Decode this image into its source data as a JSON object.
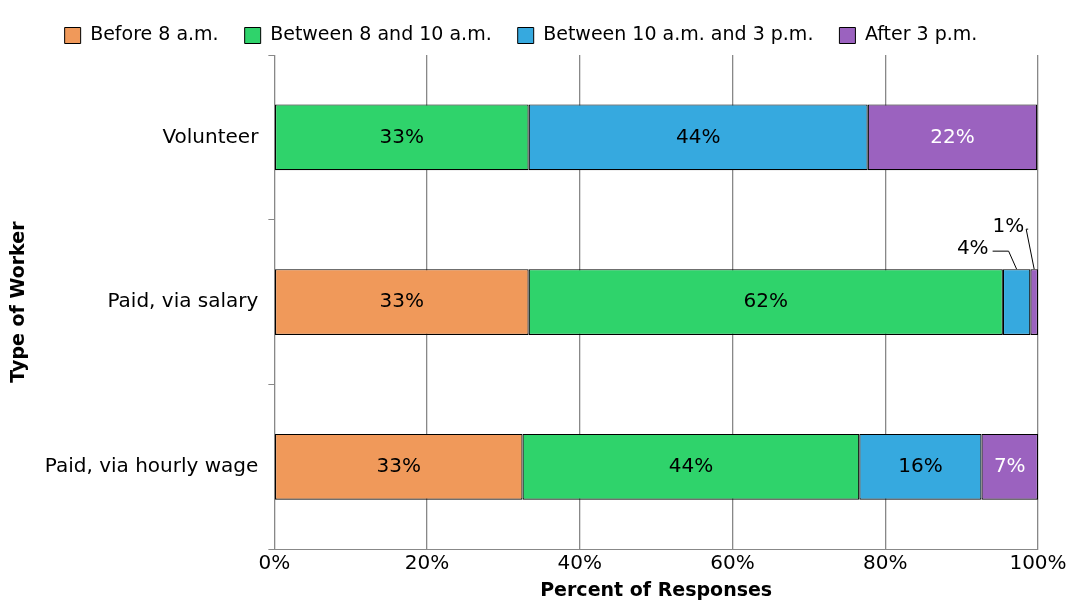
{
  "chart_data": {
    "type": "bar",
    "orientation": "horizontal",
    "stacked": true,
    "xlabel": "Percent of Responses",
    "ylabel": "Type of Worker",
    "categories": [
      "Volunteer",
      "Paid, via salary",
      "Paid, via hourly wage"
    ],
    "series": [
      {
        "name": "Before 8 a.m.",
        "color": "#f0995a",
        "values": [
          0,
          33.3,
          32.5
        ],
        "value_labels": [
          null,
          "33%",
          "33%"
        ]
      },
      {
        "name": "Between 8 and 10 a.m.",
        "color": "#2fd36b",
        "values": [
          33.3,
          62.1,
          44.1
        ],
        "value_labels": [
          "33%",
          "62%",
          "44%"
        ]
      },
      {
        "name": "Between 10 a.m. and 3 p.m.",
        "color": "#36a9df",
        "values": [
          44.4,
          3.6,
          16.0
        ],
        "value_labels": [
          "44%",
          "4%",
          "16%"
        ]
      },
      {
        "name": "After 3 p.m.",
        "color": "#9b62bf",
        "values": [
          22.2,
          1.0,
          7.4
        ],
        "value_labels": [
          "22%",
          "1%",
          "7%"
        ]
      }
    ],
    "xlim": [
      0,
      100
    ],
    "xticks": [
      {
        "value": 0,
        "label": "0%"
      },
      {
        "value": 20,
        "label": "20%"
      },
      {
        "value": 40,
        "label": "40%"
      },
      {
        "value": 60,
        "label": "60%"
      },
      {
        "value": 80,
        "label": "80%"
      },
      {
        "value": 100,
        "label": "100%"
      }
    ],
    "grid": "x",
    "legend": "top"
  }
}
